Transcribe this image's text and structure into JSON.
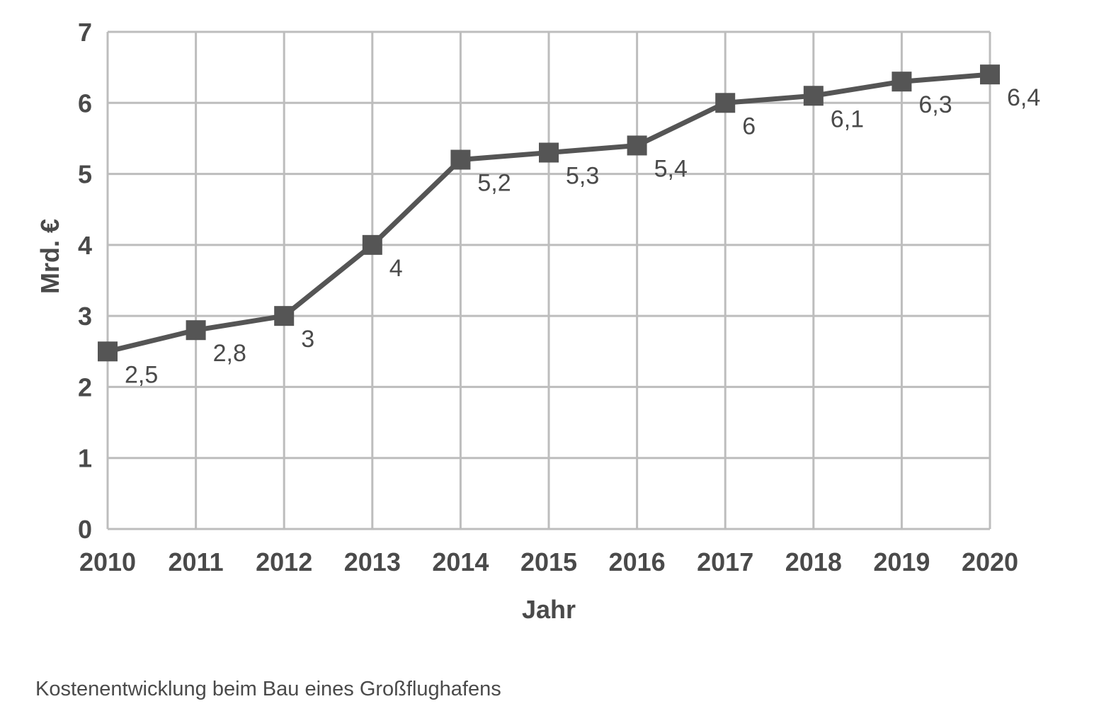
{
  "caption": "Kostenentwicklung beim Bau eines Großflughafens",
  "chart_data": {
    "type": "line",
    "title": "",
    "xlabel": "Jahr",
    "ylabel": "Mrd. €",
    "x": [
      2010,
      2011,
      2012,
      2013,
      2014,
      2015,
      2016,
      2017,
      2018,
      2019,
      2020
    ],
    "x_tick_labels": [
      "2010",
      "2011",
      "2012",
      "2013",
      "2014",
      "2015",
      "2016",
      "2017",
      "2018",
      "2019",
      "2020"
    ],
    "y_tick_labels": [
      "0",
      "1",
      "2",
      "3",
      "4",
      "5",
      "6",
      "7"
    ],
    "ylim": [
      0,
      7
    ],
    "grid": true,
    "series": [
      {
        "values": [
          2.5,
          2.8,
          3,
          4,
          5.2,
          5.3,
          5.4,
          6,
          6.1,
          6.3,
          6.4
        ],
        "data_labels": [
          "2,5",
          "2,8",
          "3",
          "4",
          "5,2",
          "5,3",
          "5,4",
          "6",
          "6,1",
          "6,3",
          "6,4"
        ],
        "marker": "square",
        "color": "#555555"
      }
    ],
    "colors": {
      "line": "#555555",
      "grid": "#bdbdbd",
      "text": "#4a4a4a"
    }
  }
}
